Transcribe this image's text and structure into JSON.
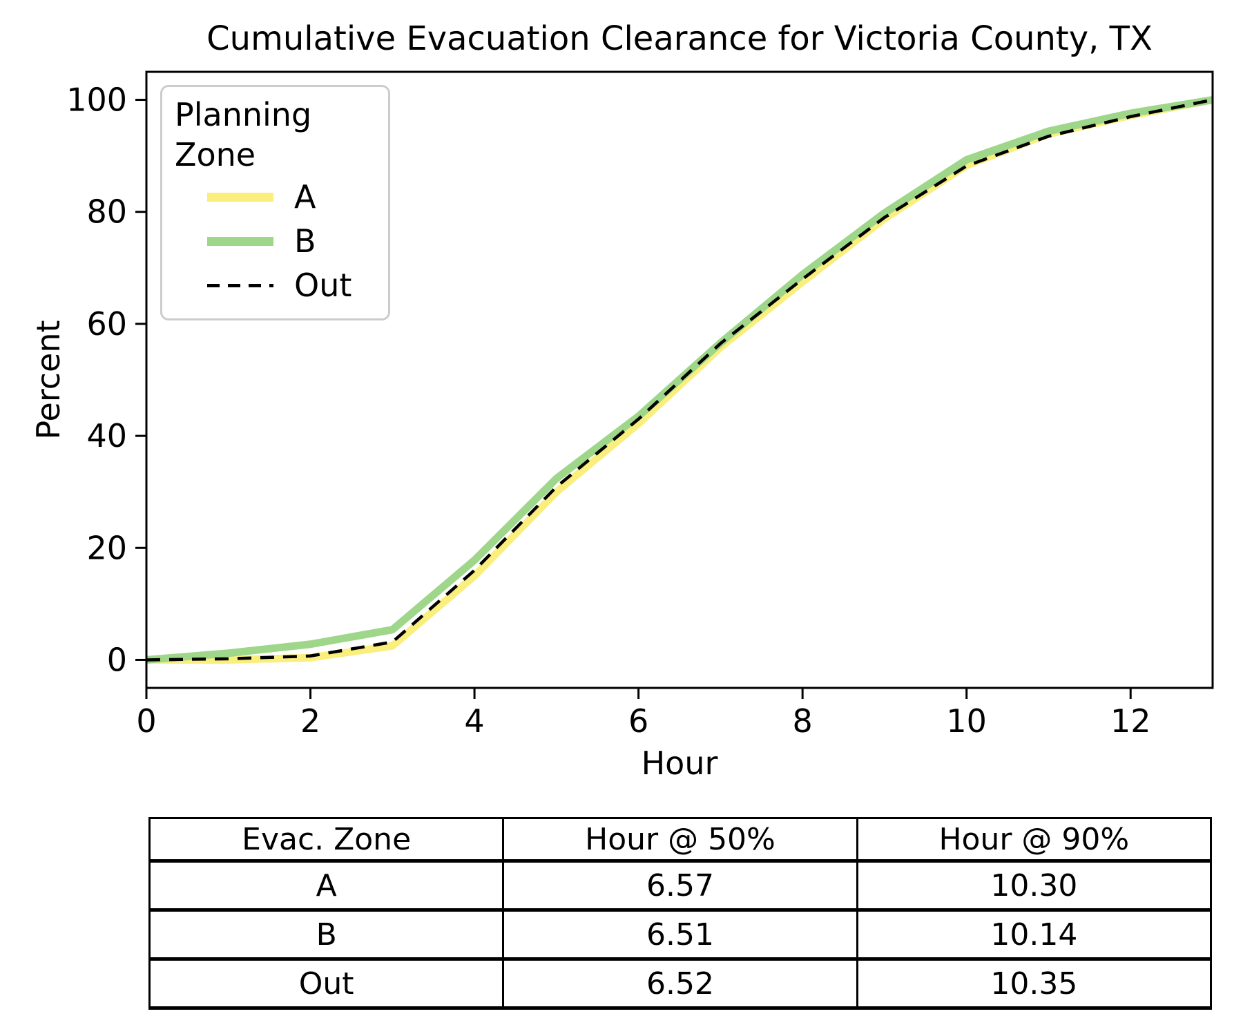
{
  "chart_data": {
    "type": "line",
    "title": "Cumulative Evacuation Clearance for Victoria County, TX",
    "xlabel": "Hour",
    "ylabel": "Percent",
    "xlim": [
      0,
      13
    ],
    "ylim": [
      -5,
      105
    ],
    "xticks": [
      0,
      2,
      4,
      6,
      8,
      10,
      12
    ],
    "yticks": [
      0,
      20,
      40,
      60,
      80,
      100
    ],
    "grid": false,
    "legend": {
      "title": "Planning Zone",
      "position": "upper left"
    },
    "x": [
      0,
      1,
      2,
      3,
      4,
      5,
      6,
      7,
      8,
      9,
      10,
      11,
      12,
      13
    ],
    "series": [
      {
        "name": "A",
        "color": "#FAEE7D",
        "style": "solid",
        "line_width": 11,
        "values": [
          0,
          0.0,
          0.4,
          2.5,
          15.0,
          30.0,
          42.2,
          55.8,
          67.5,
          78.8,
          88.3,
          93.9,
          97.2,
          100
        ]
      },
      {
        "name": "B",
        "color": "#9ED68A",
        "style": "solid",
        "line_width": 11,
        "values": [
          0,
          1.2,
          2.8,
          5.4,
          17.8,
          32.4,
          43.5,
          56.6,
          68.8,
          79.8,
          89.3,
          94.4,
          97.6,
          100
        ]
      },
      {
        "name": "Out",
        "color": "#000000",
        "style": "dashed",
        "line_width": 4.5,
        "values": [
          0,
          0.2,
          0.7,
          3.2,
          16.0,
          30.9,
          43.0,
          56.5,
          68.0,
          79.0,
          88.2,
          93.5,
          97.0,
          100
        ]
      }
    ]
  },
  "table": {
    "headers": [
      "Evac. Zone",
      "Hour @ 50%",
      "Hour @ 90%"
    ],
    "rows": [
      [
        "A",
        "6.57",
        "10.30"
      ],
      [
        "B",
        "6.51",
        "10.14"
      ],
      [
        "Out",
        "6.52",
        "10.35"
      ]
    ]
  }
}
